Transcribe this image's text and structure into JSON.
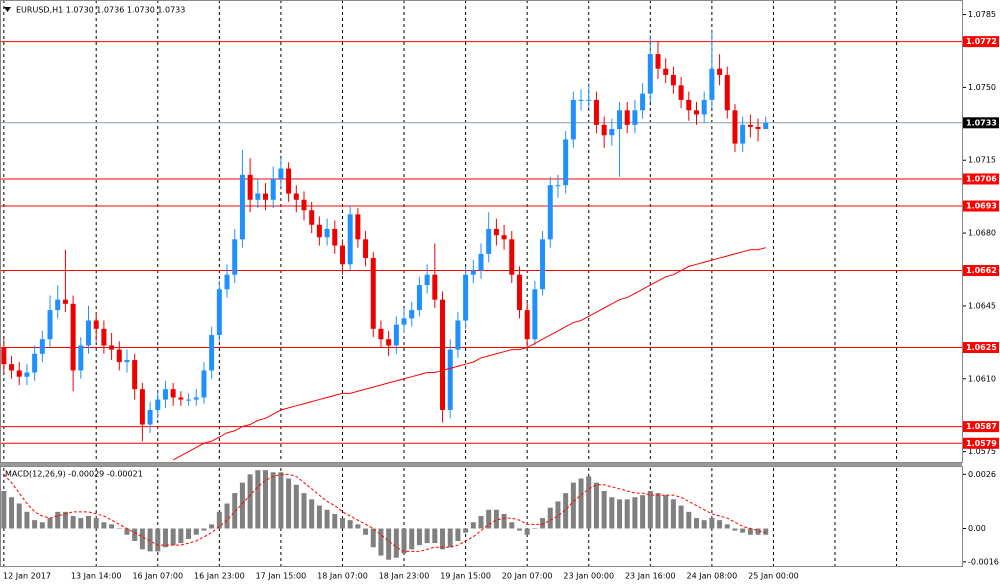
{
  "chart_data": [
    {
      "type": "candlestick",
      "title": "EURUSD,H1  1.0730 1.0736 1.0730 1.0733",
      "x": [
        1,
        3,
        5,
        7,
        9,
        11,
        13,
        15,
        17,
        19,
        21,
        23,
        25,
        27,
        29,
        31,
        33,
        35,
        37,
        39,
        41,
        43,
        45,
        47,
        49,
        51,
        53,
        55,
        57,
        59,
        61,
        63,
        65,
        67,
        69,
        71,
        73,
        75,
        77,
        79,
        81,
        83,
        85,
        87,
        89,
        91,
        93,
        95,
        97,
        99,
        101,
        103,
        105,
        107,
        109,
        111,
        113,
        115,
        117,
        119,
        121,
        123,
        125,
        127,
        129,
        131,
        133,
        135,
        137,
        139,
        141,
        143,
        145,
        147,
        149,
        151,
        153,
        155,
        157,
        159,
        161,
        163,
        165,
        167,
        169,
        171,
        173,
        175,
        177,
        179,
        181,
        183,
        185,
        187,
        189,
        191,
        193,
        195,
        197,
        199
      ],
      "open": [
        1.0625,
        1.0617,
        1.0614,
        1.0611,
        1.0613,
        1.0622,
        1.0629,
        1.0643,
        1.0648,
        1.0646,
        1.0614,
        1.0626,
        1.0638,
        1.0634,
        1.0626,
        1.0624,
        1.0618,
        1.0619,
        1.0605,
        1.0588,
        1.0595,
        1.06,
        1.0605,
        1.0601,
        1.06,
        1.06,
        1.0601,
        1.0614,
        1.0631,
        1.0653,
        1.066,
        1.0677,
        1.0708,
        1.0696,
        1.0699,
        1.0696,
        1.0706,
        1.0711,
        1.0699,
        1.0696,
        1.0691,
        1.0684,
        1.0678,
        1.0682,
        1.0674,
        1.0665,
        1.0689,
        1.0677,
        1.0668,
        1.0634,
        1.0629,
        1.0626,
        1.0636,
        1.0639,
        1.0643,
        1.0655,
        1.066,
        1.0648,
        1.0595,
        1.0624,
        1.0638,
        1.066,
        1.0662,
        1.067,
        1.0682,
        1.0679,
        1.0677,
        1.066,
        1.0643,
        1.0629,
        1.0653,
        1.0677,
        1.0703,
        1.0703,
        1.0725,
        1.0744,
        1.0744,
        1.0744,
        1.0732,
        1.0727,
        1.073,
        1.0739,
        1.0732,
        1.0739,
        1.0747,
        1.0766,
        1.0759,
        1.0756,
        1.0751,
        1.0744,
        1.0739,
        1.0737,
        1.0744,
        1.0759,
        1.0756,
        1.0739,
        1.0723,
        1.0732,
        1.0731,
        1.073
      ],
      "high": [
        1.0629,
        1.0621,
        1.0618,
        1.0617,
        1.0626,
        1.0633,
        1.065,
        1.0655,
        1.0672,
        1.065,
        1.063,
        1.0645,
        1.0642,
        1.0638,
        1.0632,
        1.0628,
        1.0624,
        1.0622,
        1.0608,
        1.0599,
        1.0604,
        1.0609,
        1.0608,
        1.0604,
        1.0603,
        1.0605,
        1.0618,
        1.0635,
        1.0657,
        1.0665,
        1.0682,
        1.072,
        1.0716,
        1.0706,
        1.0704,
        1.0712,
        1.0716,
        1.0714,
        1.0703,
        1.07,
        1.0695,
        1.0688,
        1.0687,
        1.0686,
        1.0677,
        1.0693,
        1.0692,
        1.0681,
        1.0671,
        1.0638,
        1.0633,
        1.064,
        1.0644,
        1.0647,
        1.0659,
        1.0665,
        1.0675,
        1.0652,
        1.0629,
        1.0642,
        1.0664,
        1.0667,
        1.0675,
        1.069,
        1.0687,
        1.0684,
        1.0681,
        1.0664,
        1.0647,
        1.0657,
        1.0681,
        1.0707,
        1.0708,
        1.0729,
        1.0748,
        1.0749,
        1.0752,
        1.0748,
        1.0736,
        1.0735,
        1.0743,
        1.0743,
        1.0744,
        1.0752,
        1.0775,
        1.0772,
        1.0764,
        1.076,
        1.0755,
        1.0748,
        1.0743,
        1.0748,
        1.0777,
        1.0766,
        1.076,
        1.0742,
        1.0736,
        1.0737,
        1.0735,
        1.0736
      ],
      "low": [
        1.0613,
        1.061,
        1.0607,
        1.0607,
        1.0609,
        1.0618,
        1.0625,
        1.0639,
        1.0642,
        1.0604,
        1.061,
        1.0622,
        1.0628,
        1.0622,
        1.0619,
        1.0614,
        1.0613,
        1.06,
        1.058,
        1.0584,
        1.0591,
        1.0596,
        1.0597,
        1.0597,
        1.0597,
        1.0597,
        1.0598,
        1.061,
        1.0628,
        1.0649,
        1.0656,
        1.0673,
        1.069,
        1.0692,
        1.0691,
        1.0692,
        1.0702,
        1.0695,
        1.069,
        1.0686,
        1.068,
        1.0674,
        1.0674,
        1.067,
        1.066,
        1.0662,
        1.0673,
        1.0664,
        1.063,
        1.0625,
        1.0621,
        1.0622,
        1.0632,
        1.0635,
        1.064,
        1.0651,
        1.0644,
        1.0589,
        1.0591,
        1.062,
        1.0634,
        1.0656,
        1.0658,
        1.0666,
        1.0674,
        1.0672,
        1.0656,
        1.0639,
        1.0625,
        1.0626,
        1.065,
        1.0673,
        1.0697,
        1.0699,
        1.0721,
        1.0739,
        1.074,
        1.0728,
        1.0721,
        1.0722,
        1.0707,
        1.0728,
        1.0728,
        1.0735,
        1.0743,
        1.0754,
        1.0752,
        1.0747,
        1.074,
        1.0734,
        1.0732,
        1.0733,
        1.074,
        1.0751,
        1.0735,
        1.0719,
        1.0719,
        1.0726,
        1.0724,
        1.073
      ],
      "close": [
        1.0617,
        1.0614,
        1.0611,
        1.0613,
        1.0622,
        1.0629,
        1.0643,
        1.0648,
        1.0646,
        1.0614,
        1.0626,
        1.0638,
        1.0634,
        1.0626,
        1.0624,
        1.0618,
        1.0619,
        1.0605,
        1.0588,
        1.0595,
        1.06,
        1.0605,
        1.0601,
        1.06,
        1.06,
        1.0601,
        1.0614,
        1.0631,
        1.0653,
        1.066,
        1.0677,
        1.0708,
        1.0696,
        1.0699,
        1.0696,
        1.0706,
        1.0711,
        1.0699,
        1.0696,
        1.0691,
        1.0684,
        1.0678,
        1.0682,
        1.0674,
        1.0665,
        1.0689,
        1.0677,
        1.0668,
        1.0634,
        1.0629,
        1.0626,
        1.0636,
        1.0639,
        1.0643,
        1.0655,
        1.066,
        1.0648,
        1.0595,
        1.0624,
        1.0638,
        1.066,
        1.0662,
        1.067,
        1.0682,
        1.0679,
        1.0677,
        1.066,
        1.0643,
        1.0629,
        1.0653,
        1.0677,
        1.0703,
        1.0703,
        1.0725,
        1.0744,
        1.0744,
        1.0744,
        1.0732,
        1.0727,
        1.073,
        1.0739,
        1.0732,
        1.0739,
        1.0747,
        1.0766,
        1.0759,
        1.0756,
        1.0751,
        1.0744,
        1.0739,
        1.0737,
        1.0744,
        1.0759,
        1.0756,
        1.0739,
        1.0723,
        1.0732,
        1.0731,
        1.073,
        1.0733
      ],
      "up_color": "#1e90ff",
      "down_color": "#ee0000",
      "ma_values": [
        null,
        null,
        null,
        null,
        null,
        null,
        null,
        null,
        null,
        null,
        null,
        null,
        null,
        null,
        null,
        null,
        null,
        null,
        null,
        null,
        null,
        null,
        1.0571,
        1.0573,
        1.0575,
        1.0577,
        1.0579,
        1.058,
        1.0582,
        1.0584,
        1.0585,
        1.0587,
        1.0588,
        1.059,
        1.0591,
        1.0593,
        1.0595,
        1.0596,
        1.0597,
        1.0598,
        1.0599,
        1.06,
        1.0601,
        1.0602,
        1.0603,
        1.0603,
        1.0604,
        1.0605,
        1.0606,
        1.0607,
        1.0608,
        1.0609,
        1.061,
        1.0611,
        1.0612,
        1.0613,
        1.0613,
        1.0614,
        1.0615,
        1.0616,
        1.0617,
        1.0618,
        1.062,
        1.0621,
        1.0622,
        1.0623,
        1.0624,
        1.0624,
        1.0625,
        1.0627,
        1.0629,
        1.0631,
        1.0633,
        1.0635,
        1.0637,
        1.0638,
        1.064,
        1.0642,
        1.0644,
        1.0646,
        1.0648,
        1.0649,
        1.0651,
        1.0653,
        1.0655,
        1.0657,
        1.0659,
        1.066,
        1.0662,
        1.0664,
        1.0665,
        1.0666,
        1.0667,
        1.0668,
        1.0669,
        1.067,
        1.0671,
        1.0672,
        1.0672,
        1.0673
      ],
      "ma_color": "#ff0000",
      "levels": [
        1.0772,
        1.0706,
        1.0693,
        1.0662,
        1.0625,
        1.0587,
        1.0579
      ],
      "level_color": "#ff0000",
      "last_price": 1.0733,
      "last_price_color": "#8c9eb0",
      "xlim": [
        0,
        250
      ],
      "xticks": [
        {
          "value": 1,
          "label": "12 Jan 2017"
        },
        {
          "value": 25,
          "label": "13 Jan 14:00"
        },
        {
          "value": 41,
          "label": "16 Jan 07:00"
        },
        {
          "value": 57,
          "label": "16 Jan 23:00"
        },
        {
          "value": 73,
          "label": "17 Jan 15:00"
        },
        {
          "value": 89,
          "label": "18 Jan 07:00"
        },
        {
          "value": 105,
          "label": "18 Jan 23:00"
        },
        {
          "value": 121,
          "label": "19 Jan 15:00"
        },
        {
          "value": 137,
          "label": "20 Jan 07:00"
        },
        {
          "value": 153,
          "label": "23 Jan 00:00"
        },
        {
          "value": 169,
          "label": "23 Jan 16:00"
        },
        {
          "value": 185,
          "label": "24 Jan 08:00"
        },
        {
          "value": 201,
          "label": "25 Jan 00:00"
        },
        {
          "value": 217,
          "label": null
        },
        {
          "value": 233,
          "label": null
        }
      ],
      "ylim": [
        1.057,
        1.0792
      ],
      "yticks": [
        {
          "value": 1.0785,
          "label": "1.0785"
        },
        {
          "value": 1.075,
          "label": "1.0750"
        },
        {
          "value": 1.0715,
          "label": "1.0715"
        },
        {
          "value": 1.068,
          "label": "1.0680"
        },
        {
          "value": 1.0645,
          "label": "1.0645"
        },
        {
          "value": 1.061,
          "label": "1.0610"
        },
        {
          "value": 1.0575,
          "label": "1.0575"
        }
      ]
    },
    {
      "type": "bar",
      "title": "MACD(12,26,9) -0.00029 -0.00021",
      "values": [
        0.0018,
        0.0015,
        0.0012,
        0.0008,
        0.0004,
        0.0003,
        0.0005,
        0.0008,
        0.0008,
        0.0006,
        0.0005,
        0.0006,
        0.0005,
        0.0003,
        0.0002,
        0.0,
        -0.0003,
        -0.0006,
        -0.001,
        -0.0011,
        -0.0011,
        -0.0009,
        -0.0008,
        -0.0007,
        -0.0005,
        -0.0003,
        -0.0001,
        0.0002,
        0.0008,
        0.0012,
        0.0017,
        0.0022,
        0.0026,
        0.0028,
        0.0028,
        0.0027,
        0.0027,
        0.0024,
        0.0021,
        0.0017,
        0.0014,
        0.0011,
        0.0009,
        0.0007,
        0.0005,
        0.0004,
        0.0002,
        -0.0003,
        -0.0009,
        -0.0013,
        -0.0015,
        -0.0014,
        -0.0012,
        -0.001,
        -0.0008,
        -0.0007,
        -0.0007,
        -0.001,
        -0.0009,
        -0.0006,
        -0.0002,
        0.0003,
        0.0006,
        0.0009,
        0.0009,
        0.0007,
        0.0003,
        -0.0001,
        -0.0003,
        0.0,
        0.0005,
        0.001,
        0.0013,
        0.0017,
        0.0022,
        0.0024,
        0.0025,
        0.0022,
        0.0018,
        0.0015,
        0.0014,
        0.0014,
        0.0015,
        0.0016,
        0.0018,
        0.0017,
        0.0016,
        0.0014,
        0.0011,
        0.0008,
        0.0005,
        0.0004,
        0.0005,
        0.0004,
        0.0002,
        -0.0001,
        -0.0002,
        -0.0003,
        -0.0003,
        -0.0003
      ],
      "color": "#808080",
      "signal_values": [
        0.0026,
        0.0022,
        0.0017,
        0.0012,
        0.0008,
        0.0006,
        0.0005,
        0.0006,
        0.0007,
        0.0008,
        0.0008,
        0.0008,
        0.0007,
        0.0006,
        0.0004,
        0.0002,
        0.0,
        -0.0002,
        -0.0004,
        -0.0006,
        -0.0008,
        -0.0008,
        -0.0008,
        -0.0008,
        -0.0007,
        -0.0006,
        -0.0004,
        -0.0002,
        0.0001,
        0.0004,
        0.0008,
        0.0012,
        0.0016,
        0.002,
        0.0023,
        0.0025,
        0.0026,
        0.0026,
        0.0025,
        0.0022,
        0.0019,
        0.0016,
        0.0013,
        0.0011,
        0.0008,
        0.0006,
        0.0004,
        0.0002,
        0.0,
        -0.0003,
        -0.0006,
        -0.0009,
        -0.0011,
        -0.0011,
        -0.0011,
        -0.001,
        -0.0009,
        -0.0009,
        -0.0009,
        -0.0008,
        -0.0006,
        -0.0004,
        -0.0001,
        0.0002,
        0.0004,
        0.0005,
        0.0005,
        0.0004,
        0.0002,
        0.0002,
        0.0002,
        0.0004,
        0.0006,
        0.0009,
        0.0013,
        0.0016,
        0.0019,
        0.0021,
        0.0021,
        0.002,
        0.0019,
        0.0018,
        0.0017,
        0.0017,
        0.0016,
        0.0016,
        0.0016,
        0.0016,
        0.0015,
        0.0013,
        0.0011,
        0.0009,
        0.0007,
        0.0006,
        0.0005,
        0.0003,
        0.0001,
        0.0,
        -0.0001,
        -0.0002
      ],
      "signal_color": "#ff0000",
      "ylim": [
        -0.0018,
        0.003
      ],
      "yticks": [
        {
          "value": 0.0026,
          "label": "0.0026"
        },
        {
          "value": 0,
          "label": "0.00"
        },
        {
          "value": -0.0016,
          "label": "-0.0016"
        }
      ]
    }
  ]
}
